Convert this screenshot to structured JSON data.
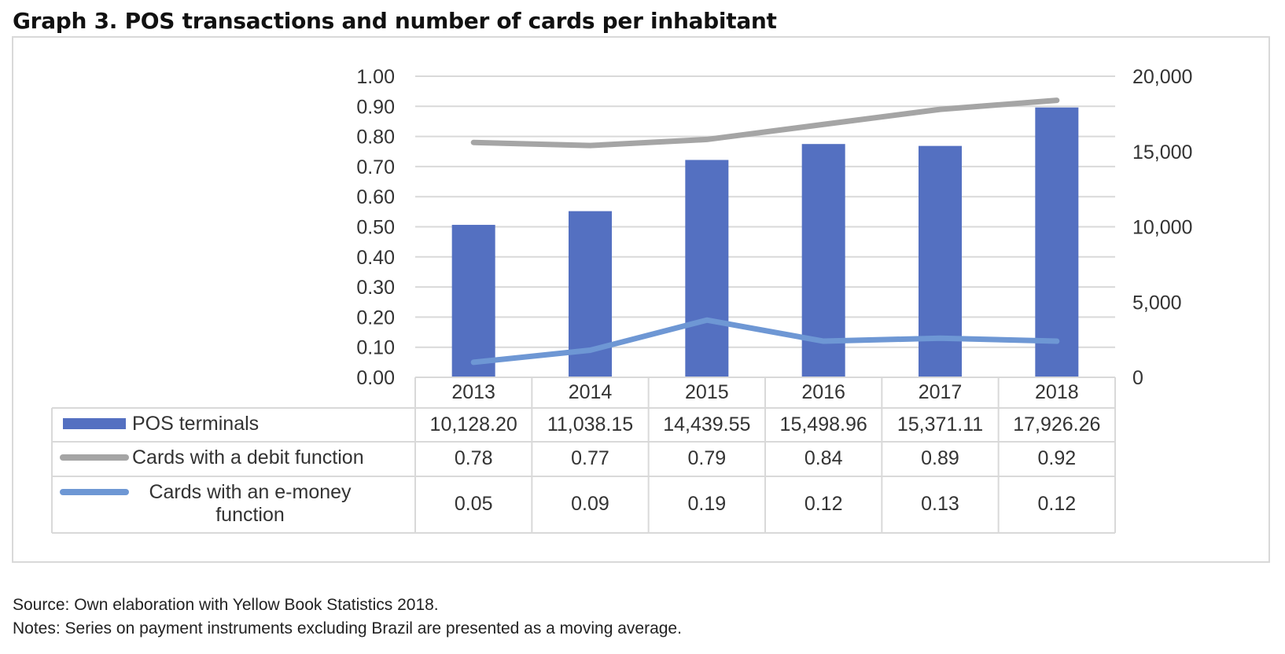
{
  "title": "Graph 3. POS transactions and number of cards per inhabitant",
  "source": "Source: Own elaboration with Yellow Book Statistics 2018.",
  "notes": "Notes: Series on payment instruments excluding Brazil are presented as a moving average.",
  "colors": {
    "bars": "#5470c1",
    "debit": "#a5a5a5",
    "emoney": "#6e97d4",
    "grid": "#d9d9d9",
    "text": "#333333"
  },
  "chart_data": {
    "type": "bar",
    "categories": [
      "2013",
      "2014",
      "2015",
      "2016",
      "2017",
      "2018"
    ],
    "left_axis": {
      "ylim": [
        0,
        1
      ],
      "ticks": [
        "0.00",
        "0.10",
        "0.20",
        "0.30",
        "0.40",
        "0.50",
        "0.60",
        "0.70",
        "0.80",
        "0.90",
        "1.00"
      ]
    },
    "right_axis": {
      "ylim": [
        0,
        20000
      ],
      "ticks": [
        "0",
        "5,000",
        "10,000",
        "15,000",
        "20,000"
      ]
    },
    "series": [
      {
        "name": "POS terminals",
        "kind": "bar",
        "axis": "right",
        "values": [
          10128.2,
          11038.15,
          14439.55,
          15498.96,
          15371.11,
          17926.26
        ],
        "labels": [
          "10,128.20",
          "11,038.15",
          "14,439.55",
          "15,498.96",
          "15,371.11",
          "17,926.26"
        ]
      },
      {
        "name": "Cards with a debit function",
        "kind": "line",
        "axis": "left",
        "values": [
          0.78,
          0.77,
          0.79,
          0.84,
          0.89,
          0.92
        ],
        "labels": [
          "0.78",
          "0.77",
          "0.79",
          "0.84",
          "0.89",
          "0.92"
        ]
      },
      {
        "name": "Cards with an e-money function",
        "kind": "line",
        "axis": "left",
        "values": [
          0.05,
          0.09,
          0.19,
          0.12,
          0.13,
          0.12
        ],
        "labels": [
          "0.05",
          "0.09",
          "0.19",
          "0.12",
          "0.13",
          "0.12"
        ]
      }
    ]
  }
}
